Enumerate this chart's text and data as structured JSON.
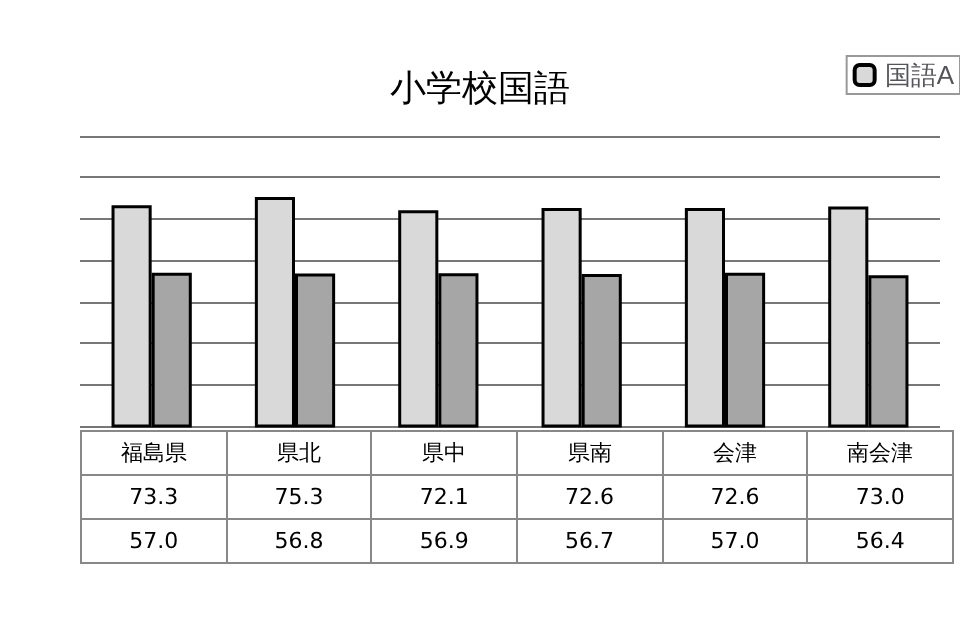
{
  "chart_data": {
    "type": "bar",
    "title": "小学校国語",
    "categories": [
      "福島県",
      "県北",
      "県中",
      "県南",
      "会津",
      "南会津"
    ],
    "series": [
      {
        "name": "国語A",
        "color": "#d9d9d9",
        "values": [
          73.3,
          75.3,
          72.1,
          72.6,
          72.6,
          73.0
        ],
        "value_labels": [
          "73.3",
          "75.3",
          "72.1",
          "72.6",
          "72.6",
          "73.0"
        ]
      },
      {
        "color": "#a6a6a6",
        "values": [
          57.0,
          56.8,
          56.9,
          56.7,
          57.0,
          56.4
        ],
        "value_labels": [
          "57.0",
          "56.8",
          "56.9",
          "56.7",
          "57.0",
          "56.4"
        ]
      }
    ],
    "ylim": [
      20,
      90
    ],
    "yticks": [
      {
        "value": 20,
        "label": null
      },
      {
        "value": 30,
        "label": null
      },
      {
        "value": 40,
        "label": null
      },
      {
        "value": 50,
        "label": null
      },
      {
        "value": 60,
        "label": null
      },
      {
        "value": 70,
        "label": null
      },
      {
        "value": 80,
        "label": null
      },
      {
        "value": 90,
        "label": null
      }
    ],
    "grid": "y",
    "legend": "top right",
    "tick_labels": false
  }
}
